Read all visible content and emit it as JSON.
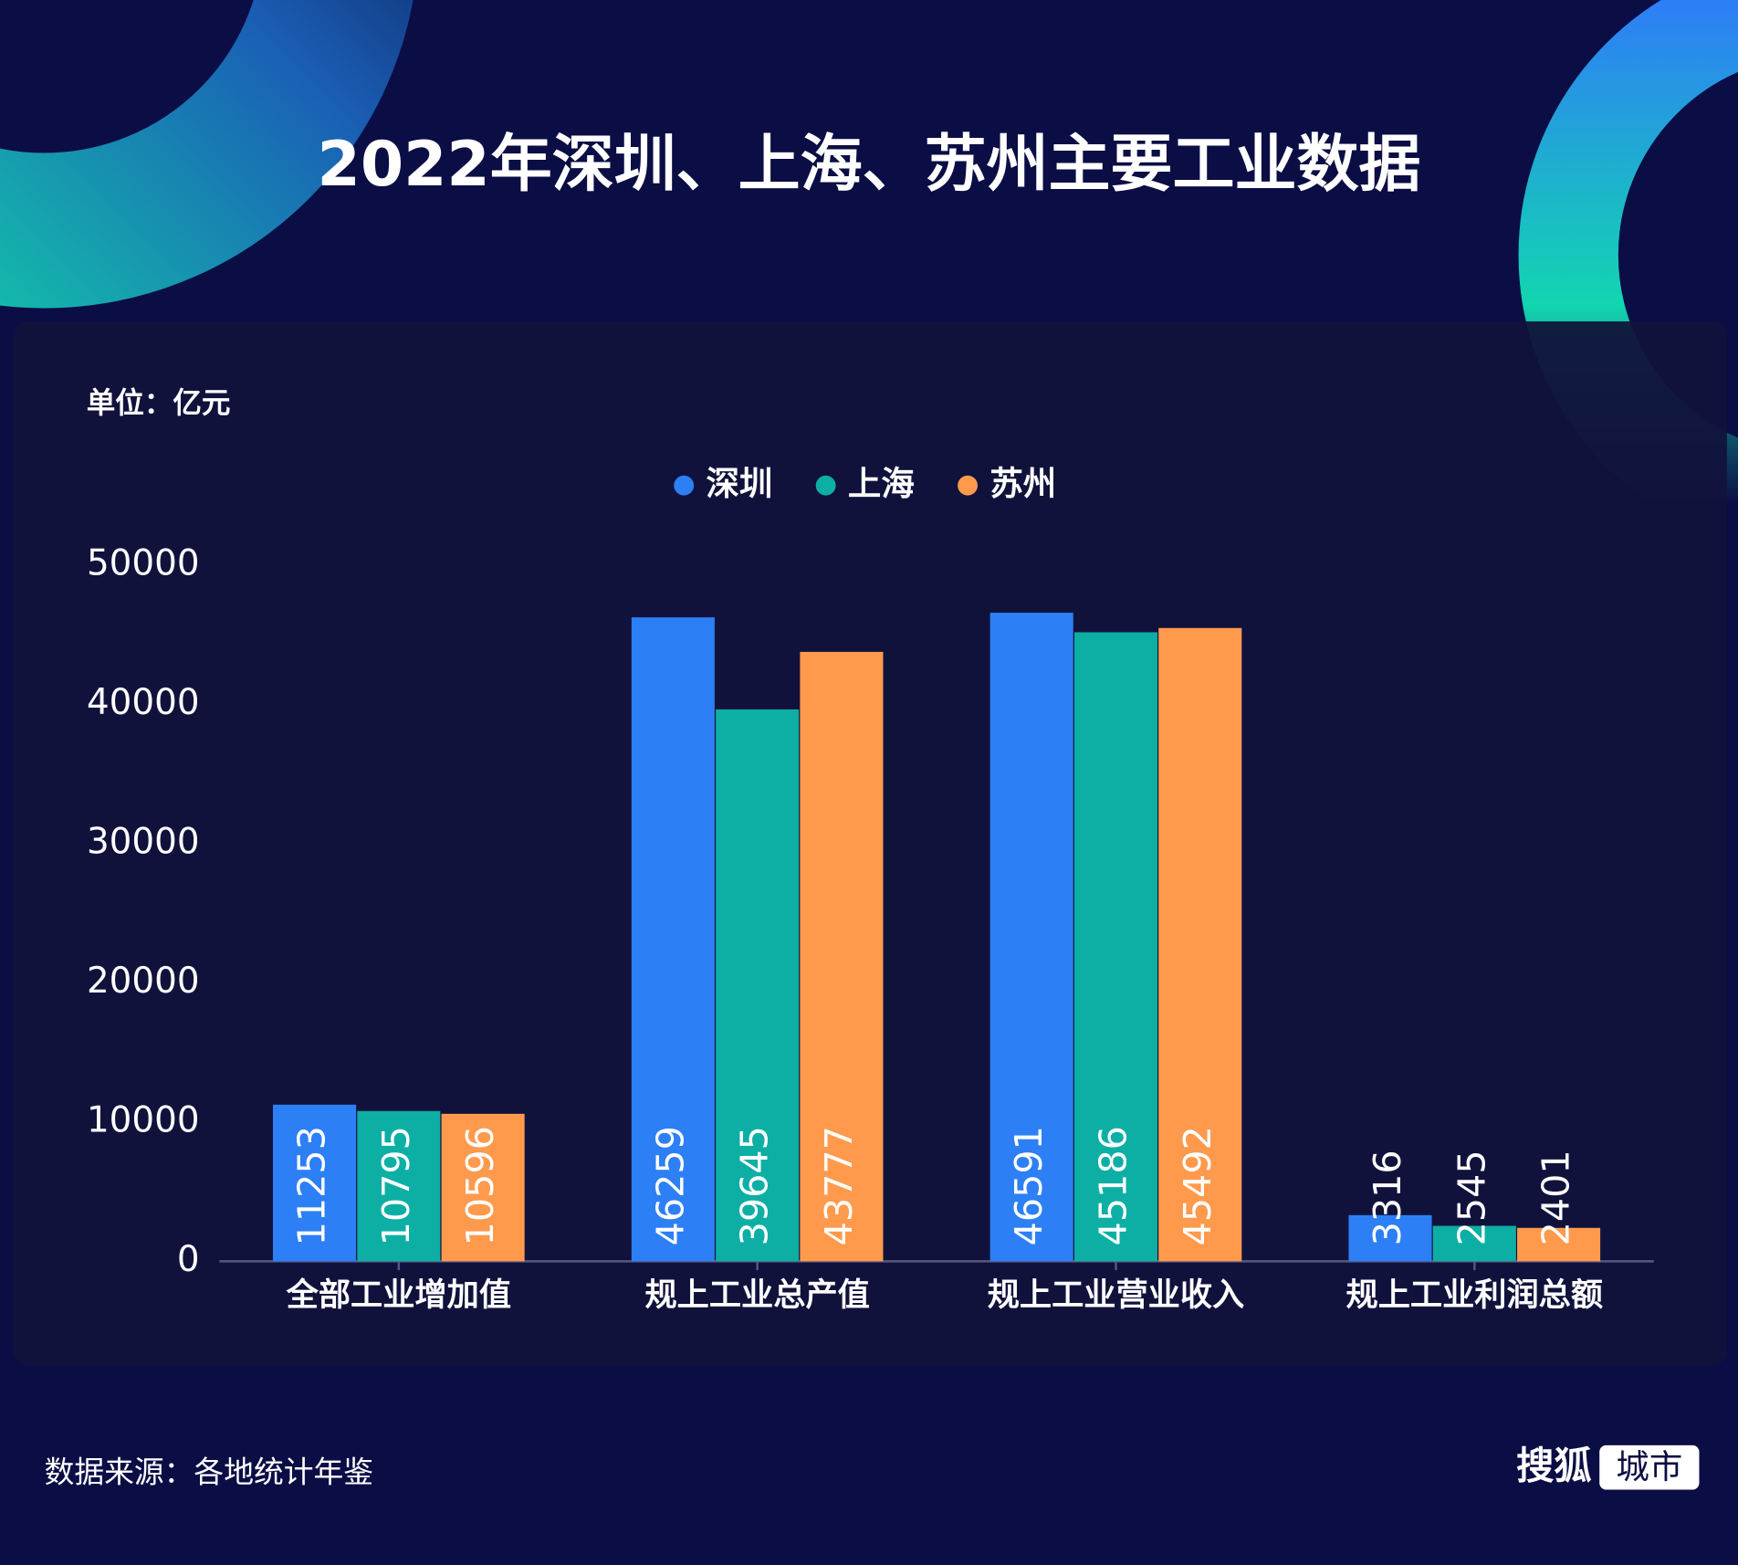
{
  "chart_data": {
    "type": "bar",
    "title": "2022年深圳、上海、苏州主要工业数据",
    "y_axis_label": "单位：亿元",
    "categories": [
      "全部工业增加值",
      "规上工业总产值",
      "规上工业营业收入",
      "规上工业利润总额"
    ],
    "series": [
      {
        "name": "深圳",
        "color": "#2d7ff5",
        "values": [
          11253,
          46259,
          46591,
          3316
        ]
      },
      {
        "name": "上海",
        "color": "#0dafa5",
        "values": [
          10795,
          39645,
          45186,
          2545
        ]
      },
      {
        "name": "苏州",
        "color": "#ff9a4d",
        "values": [
          10596,
          43777,
          45492,
          2401
        ]
      }
    ],
    "ylim": [
      0,
      50000
    ],
    "yticks": [
      0,
      10000,
      20000,
      30000,
      40000,
      50000
    ],
    "grid": false,
    "legend": "top"
  },
  "footer": {
    "source": "数据来源：各地统计年鉴",
    "brand": "搜狐",
    "brand_tag": "城市"
  }
}
